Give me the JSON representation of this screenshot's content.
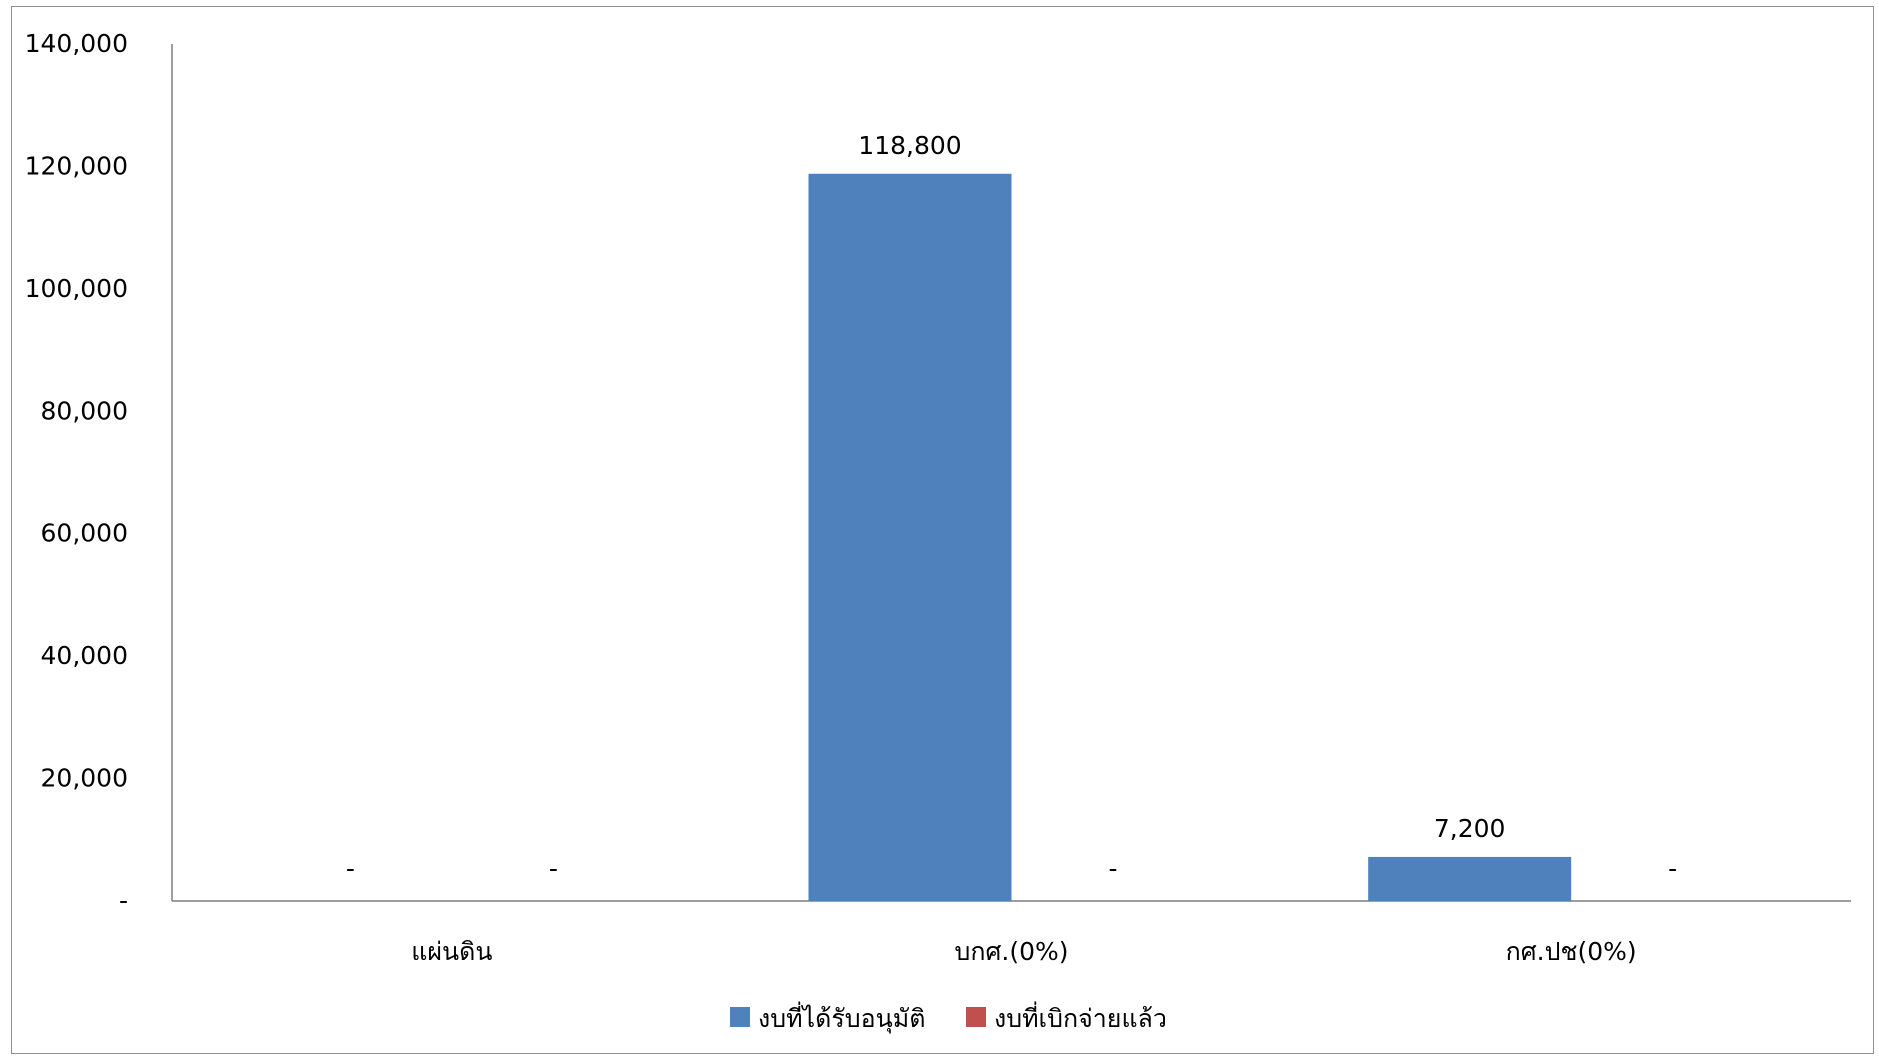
{
  "chart_data": {
    "type": "bar",
    "categories": [
      "แผ่นดิน",
      "บกศ.(0%)",
      "กศ.ปช(0%)"
    ],
    "series": [
      {
        "name": "งบที่ได้รับอนุมัติ",
        "color": "#4F81BD",
        "values": [
          0,
          118800,
          7200
        ],
        "labels": [
          "-",
          "118,800",
          "7,200"
        ]
      },
      {
        "name": "งบที่เบิกจ่ายแล้ว",
        "color": "#C0504D",
        "values": [
          0,
          0,
          0
        ],
        "labels": [
          "-",
          "-",
          "-"
        ]
      }
    ],
    "ylim": [
      0,
      140000
    ],
    "yticks": [
      0,
      20000,
      40000,
      60000,
      80000,
      100000,
      120000,
      140000
    ],
    "ytick_labels": [
      "-",
      "20,000",
      "40,000",
      "60,000",
      "80,000",
      "100,000",
      "120,000",
      "140,000"
    ],
    "title": "",
    "xlabel": "",
    "ylabel": "",
    "grid": false,
    "legend_position": "bottom",
    "axis_color": "#7f7f7f"
  }
}
